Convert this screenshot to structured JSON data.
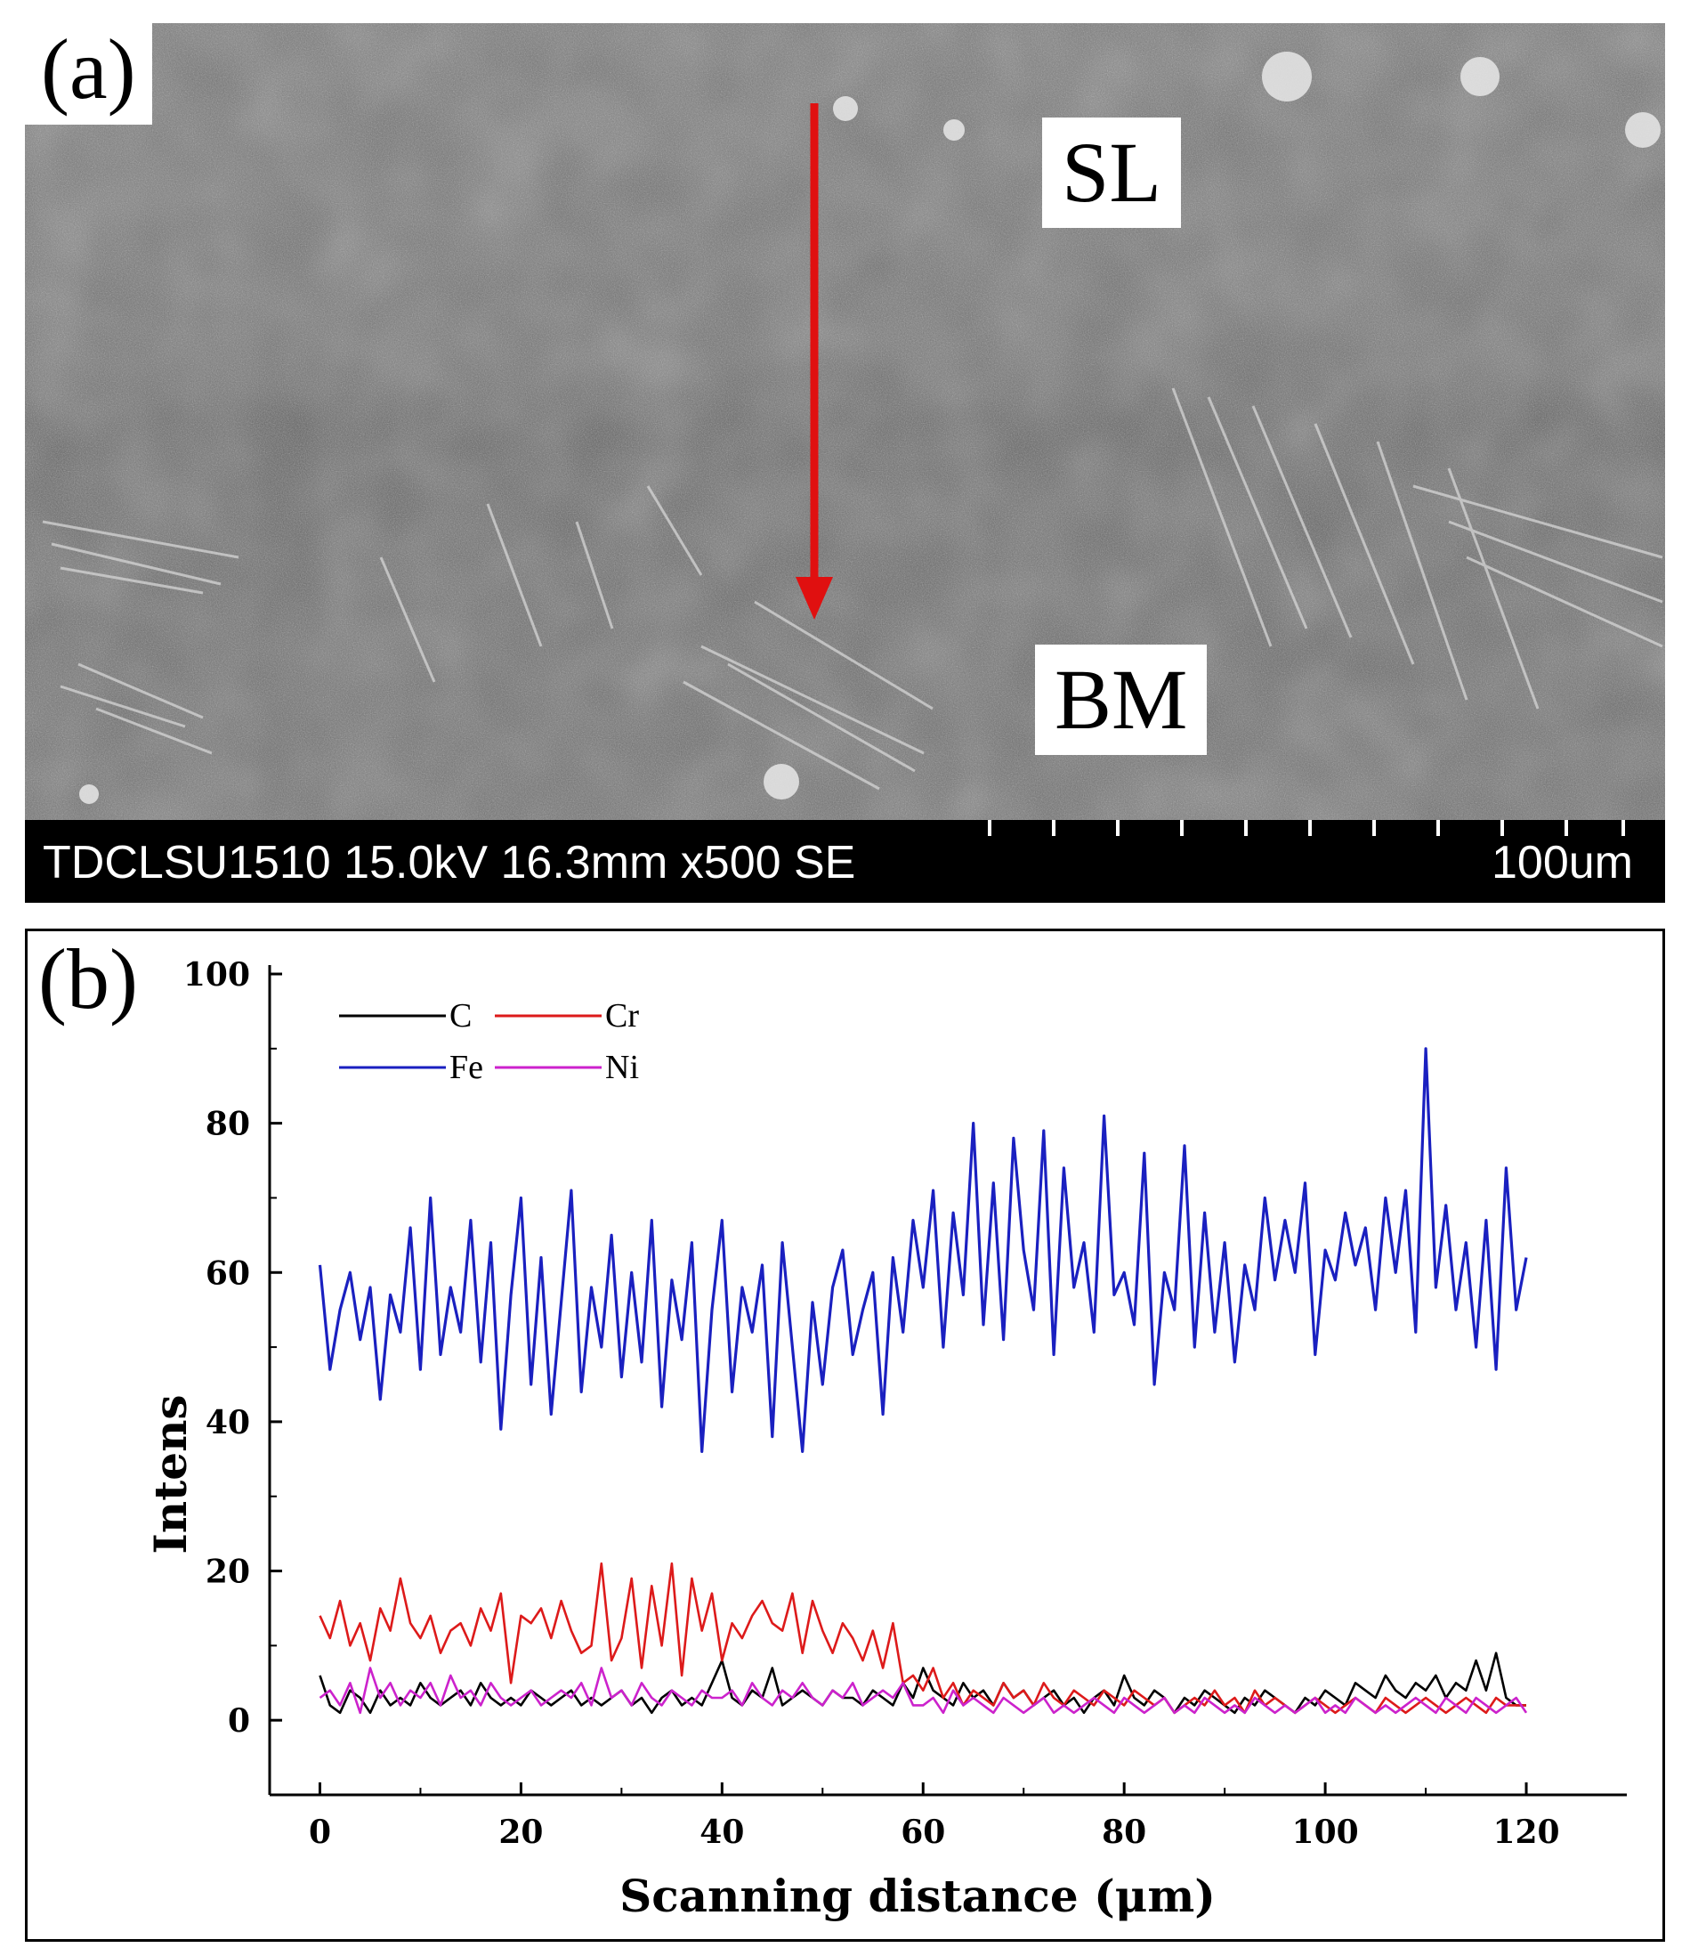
{
  "panel_a": {
    "letter": "(a)",
    "region_top": "SL",
    "region_bottom": "BM",
    "info_text": "TDCLSU1510 15.0kV 16.3mm x500 SE",
    "scale_text": "100um",
    "arrow_color": "#e01010"
  },
  "panel_b": {
    "letter": "(b)"
  },
  "chart_data": {
    "type": "line",
    "title": "",
    "xlabel": "Scanning distance (μm)",
    "ylabel": "Intens",
    "xlim": [
      -5,
      130
    ],
    "ylim": [
      -10,
      100
    ],
    "xticks": [
      0,
      20,
      40,
      60,
      80,
      100,
      120
    ],
    "yticks": [
      0,
      20,
      40,
      60,
      80,
      100
    ],
    "legend_position": "top-left",
    "x": [
      0,
      1,
      2,
      3,
      4,
      5,
      6,
      7,
      8,
      9,
      10,
      11,
      12,
      13,
      14,
      15,
      16,
      17,
      18,
      19,
      20,
      21,
      22,
      23,
      24,
      25,
      26,
      27,
      28,
      29,
      30,
      31,
      32,
      33,
      34,
      35,
      36,
      37,
      38,
      39,
      40,
      41,
      42,
      43,
      44,
      45,
      46,
      47,
      48,
      49,
      50,
      51,
      52,
      53,
      54,
      55,
      56,
      57,
      58,
      59,
      60,
      61,
      62,
      63,
      64,
      65,
      66,
      67,
      68,
      69,
      70,
      71,
      72,
      73,
      74,
      75,
      76,
      77,
      78,
      79,
      80,
      81,
      82,
      83,
      84,
      85,
      86,
      87,
      88,
      89,
      90,
      91,
      92,
      93,
      94,
      95,
      96,
      97,
      98,
      99,
      100,
      101,
      102,
      103,
      104,
      105,
      106,
      107,
      108,
      109,
      110,
      111,
      112,
      113,
      114,
      115,
      116,
      117,
      118,
      119,
      120
    ],
    "series": [
      {
        "name": "C",
        "color": "#000000",
        "values": [
          6,
          2,
          1,
          4,
          3,
          1,
          4,
          2,
          3,
          2,
          5,
          3,
          2,
          3,
          4,
          2,
          5,
          3,
          2,
          3,
          2,
          4,
          3,
          2,
          3,
          4,
          2,
          3,
          2,
          3,
          4,
          2,
          3,
          1,
          3,
          4,
          2,
          3,
          2,
          5,
          8,
          3,
          2,
          4,
          3,
          7,
          2,
          3,
          4,
          3,
          2,
          4,
          3,
          3,
          2,
          4,
          3,
          2,
          5,
          3,
          7,
          4,
          3,
          2,
          5,
          3,
          4,
          2,
          5,
          3,
          4,
          2,
          3,
          4,
          2,
          3,
          1,
          3,
          4,
          2,
          6,
          3,
          2,
          4,
          3,
          1,
          3,
          2,
          4,
          3,
          2,
          1,
          3,
          2,
          4,
          3,
          2,
          1,
          3,
          2,
          4,
          3,
          2,
          5,
          4,
          3,
          6,
          4,
          3,
          5,
          4,
          6,
          3,
          5,
          4,
          8,
          4,
          9,
          3,
          2,
          2
        ]
      },
      {
        "name": "Cr",
        "color": "#dd1a1a",
        "values": [
          14,
          11,
          16,
          10,
          13,
          8,
          15,
          12,
          19,
          13,
          11,
          14,
          9,
          12,
          13,
          10,
          15,
          12,
          17,
          5,
          14,
          13,
          15,
          11,
          16,
          12,
          9,
          10,
          21,
          8,
          11,
          19,
          7,
          18,
          10,
          21,
          6,
          19,
          12,
          17,
          8,
          13,
          11,
          14,
          16,
          13,
          12,
          17,
          9,
          16,
          12,
          9,
          13,
          11,
          8,
          12,
          7,
          13,
          5,
          6,
          4,
          7,
          3,
          5,
          2,
          4,
          3,
          2,
          5,
          3,
          4,
          2,
          5,
          3,
          2,
          4,
          3,
          2,
          4,
          3,
          2,
          4,
          3,
          2,
          3,
          1,
          2,
          3,
          2,
          4,
          2,
          3,
          1,
          4,
          2,
          3,
          2,
          1,
          2,
          3,
          2,
          1,
          2,
          3,
          2,
          1,
          3,
          2,
          1,
          2,
          3,
          2,
          1,
          2,
          3,
          2,
          1,
          3,
          2,
          2,
          2
        ]
      },
      {
        "name": "Fe",
        "color": "#1a20c0",
        "values": [
          61,
          47,
          55,
          60,
          51,
          58,
          43,
          57,
          52,
          66,
          47,
          70,
          49,
          58,
          52,
          67,
          48,
          64,
          39,
          57,
          70,
          45,
          62,
          41,
          56,
          71,
          44,
          58,
          50,
          65,
          46,
          60,
          48,
          67,
          42,
          59,
          51,
          64,
          36,
          55,
          67,
          44,
          58,
          52,
          61,
          38,
          64,
          50,
          36,
          56,
          45,
          58,
          63,
          49,
          55,
          60,
          41,
          62,
          52,
          67,
          58,
          71,
          50,
          68,
          57,
          80,
          53,
          72,
          51,
          78,
          63,
          55,
          79,
          49,
          74,
          58,
          64,
          52,
          81,
          57,
          60,
          53,
          76,
          45,
          60,
          55,
          77,
          50,
          68,
          52,
          64,
          48,
          61,
          55,
          70,
          59,
          67,
          60,
          72,
          49,
          63,
          59,
          68,
          61,
          66,
          55,
          70,
          60,
          71,
          52,
          90,
          58,
          69,
          55,
          64,
          50,
          67,
          47,
          74,
          55,
          62
        ]
      },
      {
        "name": "Ni",
        "color": "#cc22cc",
        "values": [
          3,
          4,
          2,
          5,
          1,
          7,
          3,
          5,
          2,
          4,
          3,
          5,
          2,
          6,
          3,
          4,
          2,
          5,
          3,
          2,
          3,
          4,
          2,
          3,
          4,
          3,
          5,
          2,
          7,
          3,
          4,
          2,
          5,
          3,
          2,
          4,
          3,
          2,
          4,
          3,
          3,
          4,
          2,
          5,
          3,
          2,
          4,
          3,
          5,
          3,
          2,
          4,
          3,
          5,
          2,
          3,
          4,
          3,
          5,
          2,
          2,
          3,
          1,
          4,
          2,
          3,
          2,
          1,
          3,
          2,
          1,
          2,
          3,
          1,
          2,
          1,
          2,
          3,
          2,
          1,
          3,
          2,
          1,
          2,
          3,
          1,
          2,
          1,
          3,
          2,
          1,
          2,
          1,
          3,
          2,
          1,
          2,
          1,
          2,
          3,
          1,
          2,
          1,
          3,
          2,
          1,
          2,
          1,
          2,
          3,
          2,
          1,
          3,
          2,
          1,
          3,
          2,
          1,
          2,
          3,
          1
        ]
      }
    ]
  }
}
